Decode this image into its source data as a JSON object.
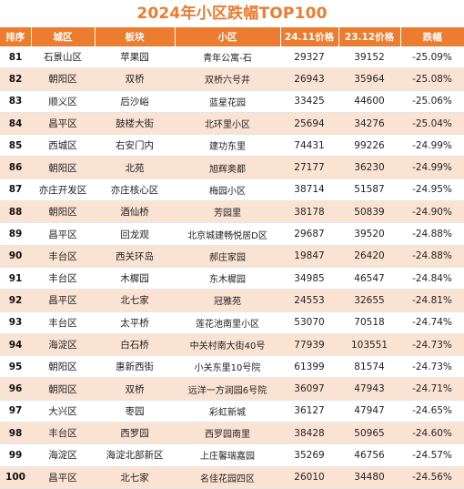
{
  "title": "2024年小区跌幅TOP100",
  "columns": [
    "排序",
    "城区",
    "板块",
    "小区",
    "24.11价格",
    "23.12价格",
    "跌幅"
  ],
  "rows": [
    [
      "81",
      "石景山区",
      "苹果园",
      "青年公寓-石",
      "29327",
      "39152",
      "-25.09%"
    ],
    [
      "82",
      "朝阳区",
      "双桥",
      "双桥六号井",
      "26943",
      "35964",
      "-25.08%"
    ],
    [
      "83",
      "顺义区",
      "后沙峪",
      "蓝星花园",
      "33425",
      "44600",
      "-25.06%"
    ],
    [
      "84",
      "昌平区",
      "鼓楼大街",
      "北环里小区",
      "25694",
      "34276",
      "-25.04%"
    ],
    [
      "85",
      "西城区",
      "右安门内",
      "建功东里",
      "74431",
      "99226",
      "-24.99%"
    ],
    [
      "86",
      "朝阳区",
      "北苑",
      "旭辉奥都",
      "27177",
      "36230",
      "-24.99%"
    ],
    [
      "87",
      "亦庄开发区",
      "亦庄核心区",
      "梅园小区",
      "38714",
      "51587",
      "-24.95%"
    ],
    [
      "88",
      "朝阳区",
      "酒仙桥",
      "芳园里",
      "38178",
      "50839",
      "-24.90%"
    ],
    [
      "89",
      "昌平区",
      "回龙观",
      "北京城建畅悦居D区",
      "29687",
      "39520",
      "-24.88%"
    ],
    [
      "90",
      "丰台区",
      "西关环岛",
      "郝庄家园",
      "19847",
      "26420",
      "-24.88%"
    ],
    [
      "91",
      "丰台区",
      "木樨园",
      "东木樨园",
      "34985",
      "46547",
      "-24.84%"
    ],
    [
      "92",
      "昌平区",
      "北七家",
      "冠雅苑",
      "24553",
      "32655",
      "-24.81%"
    ],
    [
      "93",
      "丰台区",
      "太平桥",
      "莲花池南里小区",
      "53070",
      "70518",
      "-24.74%"
    ],
    [
      "94",
      "海淀区",
      "白石桥",
      "中关村南大街40号",
      "77939",
      "103551",
      "-24.73%"
    ],
    [
      "95",
      "朝阳区",
      "惠新西街",
      "小关东里10号院",
      "61399",
      "81574",
      "-24.73%"
    ],
    [
      "96",
      "朝阳区",
      "双桥",
      "远洋一方润园6号院",
      "36097",
      "47943",
      "-24.71%"
    ],
    [
      "97",
      "大兴区",
      "枣园",
      "彩虹新城",
      "36127",
      "47947",
      "-24.65%"
    ],
    [
      "98",
      "丰台区",
      "西罗园",
      "西罗园南里",
      "38428",
      "50965",
      "-24.60%"
    ],
    [
      "99",
      "海淀区",
      "海淀北部新区",
      "上庄馨瑞嘉园",
      "35269",
      "46756",
      "-24.57%"
    ],
    [
      "100",
      "昌平区",
      "北七家",
      "名佳花园四区",
      "26010",
      "34480",
      "-24.56%"
    ]
  ]
}
